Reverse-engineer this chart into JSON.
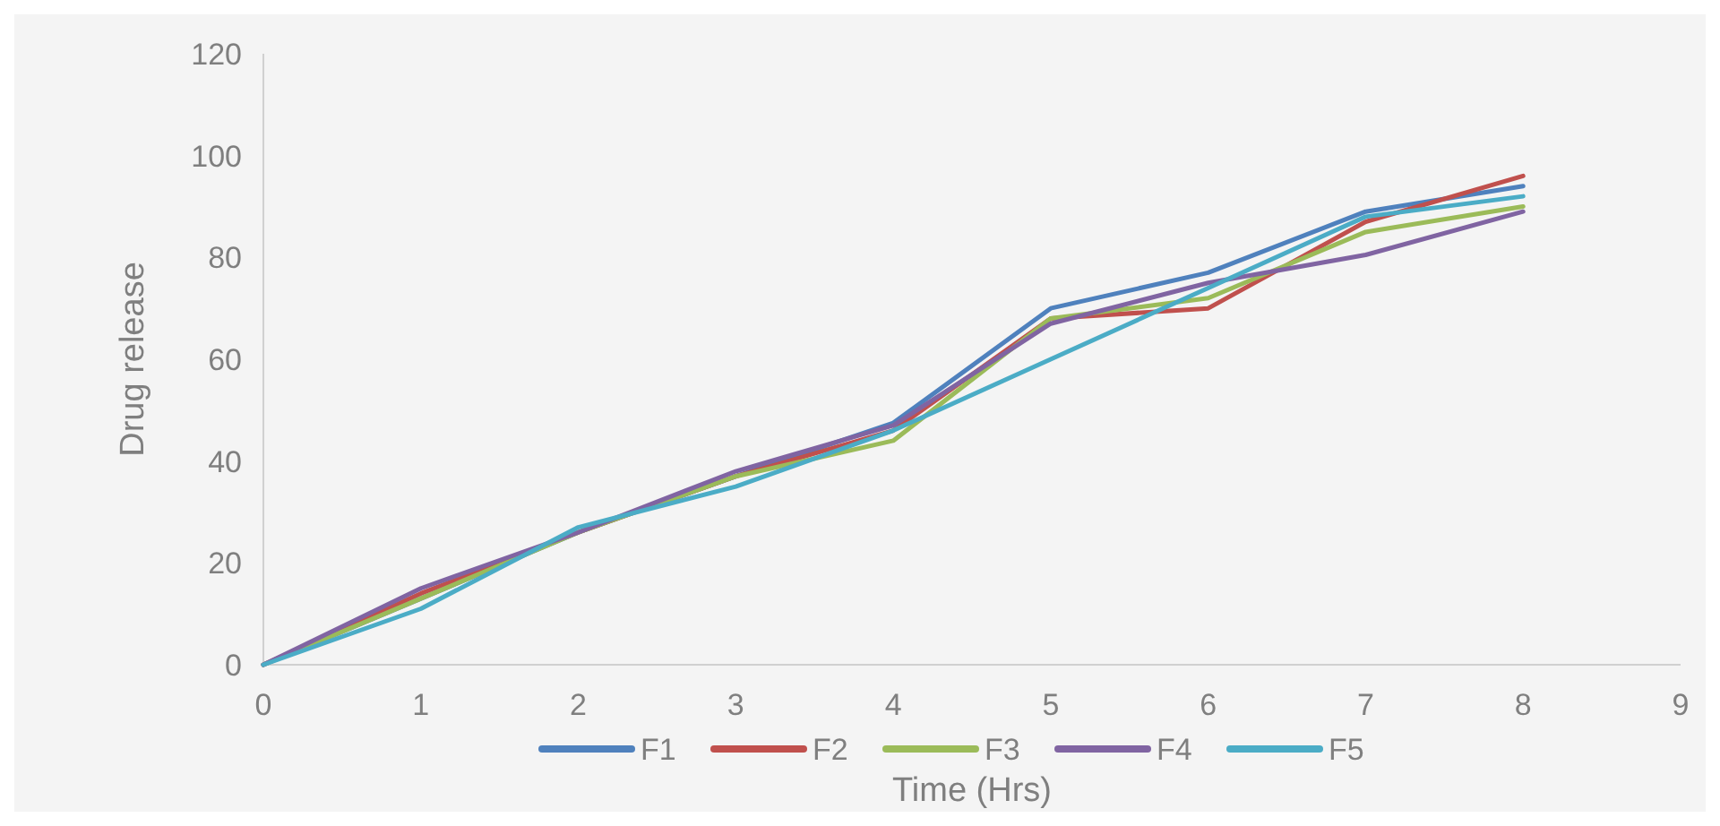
{
  "chart_data": {
    "type": "line",
    "xlabel": "Time (Hrs)",
    "ylabel": "Drug release",
    "x": [
      0,
      1,
      2,
      3,
      4,
      5,
      6,
      7,
      8
    ],
    "xlim": [
      0,
      9
    ],
    "xticks": [
      0,
      1,
      2,
      3,
      4,
      5,
      6,
      7,
      8,
      9
    ],
    "ylim": [
      0,
      120
    ],
    "yticks": [
      0,
      20,
      40,
      60,
      80,
      100,
      120
    ],
    "grid": false,
    "legend": "bottom",
    "marker": "none",
    "line_style": "solid",
    "series": [
      {
        "name": "F1",
        "color": "#4f81bd",
        "values": [
          0,
          13,
          26,
          37,
          47.5,
          70,
          77,
          89,
          94
        ]
      },
      {
        "name": "F2",
        "color": "#c0504d",
        "values": [
          0,
          14,
          26,
          37,
          46,
          68,
          70,
          87,
          96
        ]
      },
      {
        "name": "F3",
        "color": "#9bbb59",
        "values": [
          0,
          13,
          26,
          37,
          44,
          68,
          72,
          85,
          90
        ]
      },
      {
        "name": "F4",
        "color": "#8064a2",
        "values": [
          0,
          15,
          26,
          38,
          47,
          67,
          75,
          80.5,
          89
        ]
      },
      {
        "name": "F5",
        "color": "#4bacc6",
        "values": [
          0,
          11,
          27,
          35,
          46,
          60,
          74,
          88,
          92
        ]
      }
    ]
  }
}
